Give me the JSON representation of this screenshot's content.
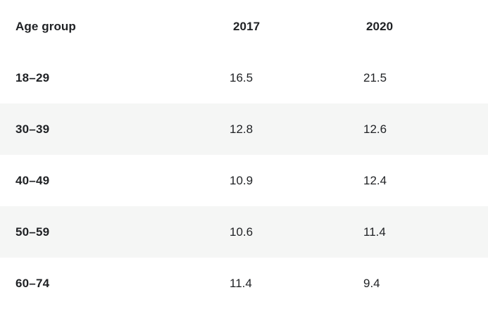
{
  "table": {
    "headers": [
      "Age group",
      "2017",
      "2020"
    ],
    "rows": [
      {
        "age": "18–29",
        "v2017": "16.5",
        "v2020": "21.5",
        "shaded": false
      },
      {
        "age": "30–39",
        "v2017": "12.8",
        "v2020": "12.6",
        "shaded": true
      },
      {
        "age": "40–49",
        "v2017": "10.9",
        "v2020": "12.4",
        "shaded": false
      },
      {
        "age": "50–59",
        "v2017": "10.6",
        "v2020": "11.4",
        "shaded": true
      },
      {
        "age": "60–74",
        "v2017": "11.4",
        "v2020": "9.4",
        "shaded": false
      }
    ]
  },
  "colors": {
    "text": "#1f2124",
    "shaded_row": "#f5f6f5",
    "background": "#ffffff"
  }
}
